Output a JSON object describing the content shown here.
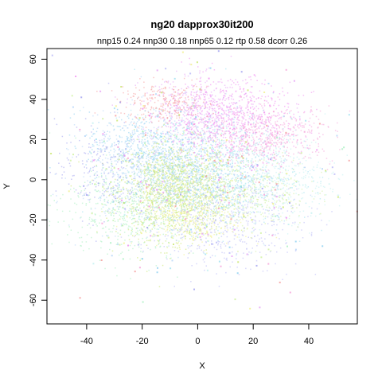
{
  "chart_data": {
    "type": "scatter",
    "title": "ng20 dapprox30it200",
    "subtitle": "nnp15 0.24 nnp30 0.18 nnp65 0.12 rtp 0.58 dcorr 0.26",
    "xlabel": "X",
    "ylabel": "Y",
    "xlim": [
      -54.3,
      57.5
    ],
    "ylim": [
      -71.8,
      65.3
    ],
    "xticks": [
      -40,
      -20,
      0,
      20,
      40
    ],
    "yticks": [
      -60,
      -40,
      -20,
      0,
      20,
      40,
      60
    ],
    "grid": false,
    "legend": "none",
    "clusters": [
      {
        "cx": -8,
        "cy": -5,
        "sx": 10,
        "sy": 12,
        "n": 1400,
        "color": "#c8e66c"
      },
      {
        "cx": 5,
        "cy": 5,
        "sx": 14,
        "sy": 14,
        "n": 1200,
        "color": "#9fe0f0"
      },
      {
        "cx": -15,
        "cy": 5,
        "sx": 13,
        "sy": 14,
        "n": 900,
        "color": "#b4d4f8"
      },
      {
        "cx": 12,
        "cy": 30,
        "sx": 12,
        "sy": 10,
        "n": 700,
        "color": "#f08cf0"
      },
      {
        "cx": 25,
        "cy": 22,
        "sx": 12,
        "sy": 7,
        "n": 500,
        "color": "#f5a0d8"
      },
      {
        "cx": 0,
        "cy": 35,
        "sx": 10,
        "sy": 8,
        "n": 400,
        "color": "#e6a0f5"
      },
      {
        "cx": -12,
        "cy": 38,
        "sx": 8,
        "sy": 5,
        "n": 250,
        "color": "#f59a9a"
      },
      {
        "cx": -25,
        "cy": -15,
        "sx": 12,
        "sy": 12,
        "n": 500,
        "color": "#a8f0c0"
      },
      {
        "cx": 10,
        "cy": -20,
        "sx": 14,
        "sy": 12,
        "n": 500,
        "color": "#b8b8f8"
      },
      {
        "cx": -2,
        "cy": -18,
        "sx": 10,
        "sy": 8,
        "n": 400,
        "color": "#f0f08c"
      },
      {
        "cx": -20,
        "cy": 18,
        "sx": 10,
        "sy": 8,
        "n": 300,
        "color": "#8cd0f0"
      },
      {
        "cx": 30,
        "cy": 0,
        "sx": 10,
        "sy": 12,
        "n": 350,
        "color": "#c0f0f0"
      },
      {
        "cx": -35,
        "cy": 5,
        "sx": 8,
        "sy": 12,
        "n": 200,
        "color": "#a0a0f0"
      },
      {
        "cx": 20,
        "cy": -5,
        "sx": 10,
        "sy": 10,
        "n": 300,
        "color": "#d0f0a0"
      }
    ],
    "scattered": {
      "n": 350,
      "sx": 26,
      "sy": 28
    }
  }
}
